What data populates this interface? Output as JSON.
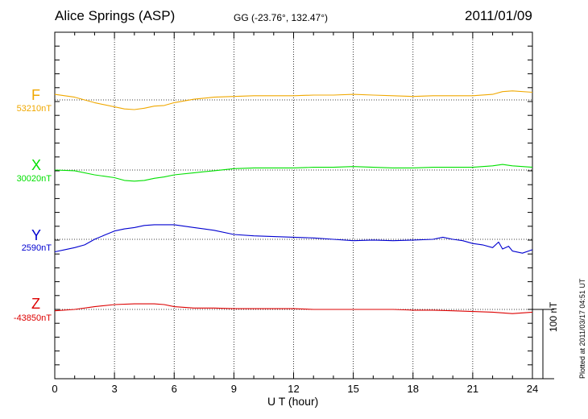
{
  "header": {
    "station": "Alice Springs (ASP)",
    "coords": "GG (-23.76°, 132.47°)",
    "date": "2011/01/09"
  },
  "scale_label": "100 nT",
  "plotted_note": "Plotted at 2011/03/17 04:51  UT",
  "chart_data": {
    "type": "line",
    "xlabel": "U T (hour)",
    "xlim": [
      0,
      24
    ],
    "xticks": [
      0,
      3,
      6,
      9,
      12,
      15,
      18,
      21,
      24
    ],
    "scale_nT": 100,
    "grid": true,
    "series": [
      {
        "name": "F",
        "baseline_label": "53210nT",
        "baseline_nT": 53210,
        "color": "#f0a800",
        "x": [
          0,
          1,
          2,
          3,
          3.5,
          4,
          4.5,
          5,
          5.5,
          6,
          7,
          8,
          9,
          10,
          11,
          12,
          13,
          14,
          15,
          16,
          17,
          18,
          19,
          20,
          21,
          22,
          22.5,
          23,
          24
        ],
        "values": [
          53218,
          53214,
          53206,
          53200,
          53197,
          53196,
          53198,
          53201,
          53202,
          53206,
          53211,
          53214,
          53215,
          53216,
          53216,
          53216,
          53217,
          53217,
          53218,
          53217,
          53216,
          53215,
          53216,
          53216,
          53216,
          53218,
          53222,
          53223,
          53221
        ]
      },
      {
        "name": "X",
        "baseline_label": "30020nT",
        "baseline_nT": 30020,
        "color": "#00e000",
        "x": [
          0,
          1,
          2,
          3,
          3.5,
          4,
          4.5,
          5,
          5.5,
          6,
          7,
          8,
          9,
          10,
          11,
          12,
          13,
          14,
          15,
          16,
          17,
          18,
          19,
          20,
          21,
          22,
          22.5,
          23,
          24
        ],
        "values": [
          30020,
          30019,
          30013,
          30009,
          30005,
          30004,
          30005,
          30008,
          30010,
          30013,
          30016,
          30019,
          30022,
          30023,
          30023,
          30023,
          30024,
          30024,
          30025,
          30024,
          30023,
          30023,
          30024,
          30024,
          30024,
          30026,
          30028,
          30026,
          30024
        ]
      },
      {
        "name": "Y",
        "baseline_label": "2590nT",
        "baseline_nT": 2590,
        "color": "#0000d0",
        "x": [
          0,
          0.5,
          1,
          1.5,
          2,
          2.5,
          3,
          3.5,
          4,
          4.5,
          5,
          5.5,
          6,
          7,
          8,
          9,
          10,
          11,
          12,
          13,
          14,
          15,
          16,
          17,
          18,
          19,
          19.5,
          20,
          20.5,
          21,
          21.5,
          22,
          22.3,
          22.5,
          22.8,
          23,
          23.5,
          24
        ],
        "values": [
          2572,
          2575,
          2578,
          2582,
          2590,
          2596,
          2602,
          2605,
          2607,
          2610,
          2611,
          2611,
          2611,
          2607,
          2603,
          2597,
          2595,
          2594,
          2593,
          2592,
          2590,
          2588,
          2589,
          2588,
          2589,
          2590,
          2593,
          2590,
          2588,
          2584,
          2582,
          2578,
          2586,
          2576,
          2580,
          2573,
          2570,
          2575
        ]
      },
      {
        "name": "Z",
        "baseline_label": "-43850nT",
        "baseline_nT": -43850,
        "color": "#dd0000",
        "x": [
          0,
          1,
          2,
          3,
          4,
          5,
          5.5,
          6,
          7,
          8,
          9,
          10,
          11,
          12,
          13,
          14,
          15,
          16,
          17,
          18,
          19,
          20,
          21,
          22,
          23,
          24
        ],
        "values": [
          -43852,
          -43850,
          -43846,
          -43843,
          -43842,
          -43842,
          -43843,
          -43846,
          -43848,
          -43848,
          -43849,
          -43849,
          -43849,
          -43849,
          -43850,
          -43850,
          -43850,
          -43850,
          -43850,
          -43851,
          -43851,
          -43852,
          -43853,
          -43854,
          -43856,
          -43854
        ]
      }
    ]
  }
}
